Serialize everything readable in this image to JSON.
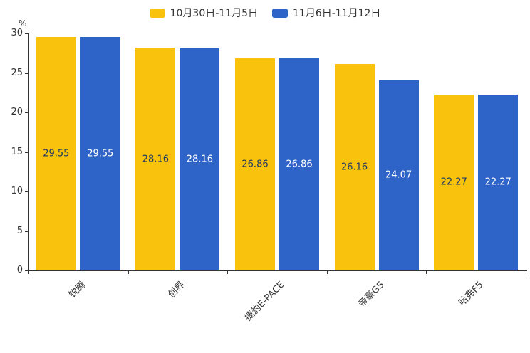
{
  "chart_data": {
    "type": "bar",
    "title": "",
    "categories": [
      "锐腾",
      "创界",
      "捷豹E-PACE",
      "帝豪GS",
      "哈弗F5"
    ],
    "series": [
      {
        "name": "10月30日-11月5日",
        "color": "#F9C20D",
        "data_label_color": "#1F3864",
        "values": [
          29.55,
          28.16,
          26.86,
          26.16,
          22.27
        ]
      },
      {
        "name": "11月6日-11月12日",
        "color": "#2E63C8",
        "data_label_color": "#FFFFFF",
        "values": [
          29.55,
          28.16,
          26.86,
          24.07,
          22.27
        ]
      }
    ],
    "ylabel": "%",
    "ylim": [
      0,
      30
    ],
    "y_ticks": [
      0,
      5,
      10,
      15,
      20,
      25,
      30
    ],
    "grid": false,
    "legend_position": "top",
    "axis_color": "#333333",
    "tick_label_color": "#333333"
  }
}
